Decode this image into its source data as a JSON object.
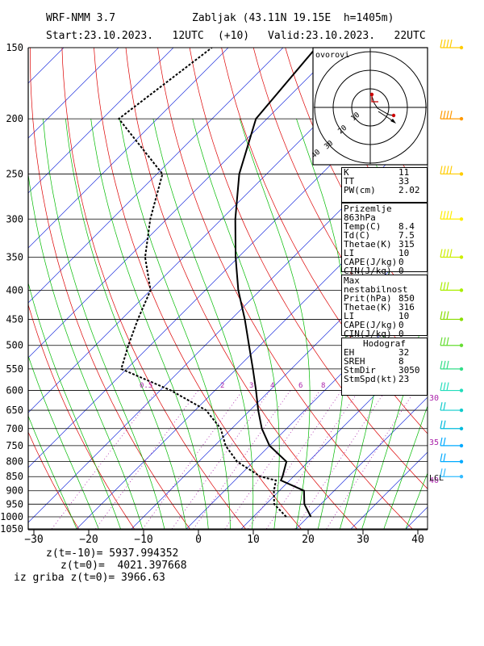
{
  "header": {
    "model": "WRF-NMM 3.7",
    "station": "Zabljak (43.11N 19.15E  h=1405m)",
    "start": "Start:23.10.2023.   12UTC",
    "offset": "(+10)",
    "valid": "Valid:23.10.2023.   22UTC"
  },
  "hodograph": {
    "label": "ovorovi",
    "ring_labels": [
      "10",
      "20",
      "30",
      "40"
    ]
  },
  "index_box": {
    "rows": [
      {
        "k": "K",
        "v": "11"
      },
      {
        "k": "TT",
        "v": "33"
      },
      {
        "k": "PW(cm)",
        "v": "2.02"
      }
    ]
  },
  "surface_box": {
    "title": "Prizemlje 863hPa",
    "rows": [
      {
        "k": "Temp(C)",
        "v": "8.4"
      },
      {
        "k": "Td(C)",
        "v": "7.5"
      },
      {
        "k": "Thetae(K)",
        "v": "315"
      },
      {
        "k": "LI",
        "v": "10"
      },
      {
        "k": "CAPE(J/kg)",
        "v": "0"
      },
      {
        "k": "CIN(J/kg)",
        "v": "0"
      }
    ]
  },
  "instab_box": {
    "title": "Max nestabilnost",
    "rows": [
      {
        "k": "Prit(hPa)",
        "v": "850"
      },
      {
        "k": "Thetae(K)",
        "v": "316"
      },
      {
        "k": "LI",
        "v": "10"
      },
      {
        "k": "CAPE(J/kg)",
        "v": "0"
      },
      {
        "k": "CIN(J/kg)",
        "v": "0"
      }
    ]
  },
  "hodo_box": {
    "title": "Hodograf",
    "rows": [
      {
        "k": "EH",
        "v": "32"
      },
      {
        "k": "SREH",
        "v": "8"
      },
      {
        "k": "StmDir",
        "v": "3050"
      },
      {
        "k": "StmSpd(kt)",
        "v": "23"
      }
    ]
  },
  "footer": {
    "z_m10": "z(t=-10)= 5937.994352",
    "z_0": "z(t=0)=  4021.397668",
    "iz_griba": "iz griba z(t=0)= 3966.63"
  },
  "colors": {
    "isotherm": "#2233dd",
    "dry_adiabat": "#dd0000",
    "moist_adiabat": "#00bb00",
    "mixing_ratio": "#aa22aa",
    "temperature": "#000000",
    "dewpoint": "#000000",
    "wind_barb_low": "#00aaff",
    "wind_barb_high": "#ffcc00"
  },
  "chart_data": {
    "type": "skew-t",
    "x_unit": "°C",
    "y_unit": "hPa",
    "xlim": [
      -30,
      40
    ],
    "ylim": [
      1050,
      150
    ],
    "x_ticks": [
      -30,
      -20,
      -10,
      0,
      10,
      20,
      30,
      40
    ],
    "y_ticks": [
      150,
      200,
      250,
      300,
      350,
      400,
      450,
      500,
      550,
      600,
      650,
      700,
      750,
      800,
      850,
      900,
      950,
      1000,
      1050
    ],
    "mixing_ratio_labels": [
      "0.5",
      "2",
      "3",
      "4",
      "6",
      "8"
    ],
    "right_axis_labels": [
      "30",
      "35",
      "40"
    ],
    "lcl_label": "LCL",
    "temperature": [
      {
        "p": 1000,
        "t": 20.5
      },
      {
        "p": 950,
        "t": 17
      },
      {
        "p": 900,
        "t": 14.5
      },
      {
        "p": 863,
        "t": 8.4
      },
      {
        "p": 850,
        "t": 8
      },
      {
        "p": 800,
        "t": 6
      },
      {
        "p": 750,
        "t": 0
      },
      {
        "p": 700,
        "t": -4.5
      },
      {
        "p": 650,
        "t": -8.5
      },
      {
        "p": 600,
        "t": -12.5
      },
      {
        "p": 550,
        "t": -17
      },
      {
        "p": 500,
        "t": -22
      },
      {
        "p": 450,
        "t": -27.5
      },
      {
        "p": 400,
        "t": -34
      },
      {
        "p": 350,
        "t": -40.5
      },
      {
        "p": 300,
        "t": -47.5
      },
      {
        "p": 250,
        "t": -55
      },
      {
        "p": 200,
        "t": -62
      },
      {
        "p": 150,
        "t": -64
      }
    ],
    "dewpoint": [
      {
        "p": 1000,
        "t": 16
      },
      {
        "p": 950,
        "t": 11.5
      },
      {
        "p": 900,
        "t": 9
      },
      {
        "p": 863,
        "t": 7.5
      },
      {
        "p": 850,
        "t": 4
      },
      {
        "p": 800,
        "t": -3
      },
      {
        "p": 750,
        "t": -8
      },
      {
        "p": 700,
        "t": -12
      },
      {
        "p": 650,
        "t": -18
      },
      {
        "p": 600,
        "t": -28
      },
      {
        "p": 550,
        "t": -41
      },
      {
        "p": 500,
        "t": -44
      },
      {
        "p": 450,
        "t": -47
      },
      {
        "p": 400,
        "t": -50
      },
      {
        "p": 350,
        "t": -57
      },
      {
        "p": 300,
        "t": -63
      },
      {
        "p": 250,
        "t": -69
      },
      {
        "p": 200,
        "t": -87
      },
      {
        "p": 150,
        "t": -83
      }
    ]
  }
}
